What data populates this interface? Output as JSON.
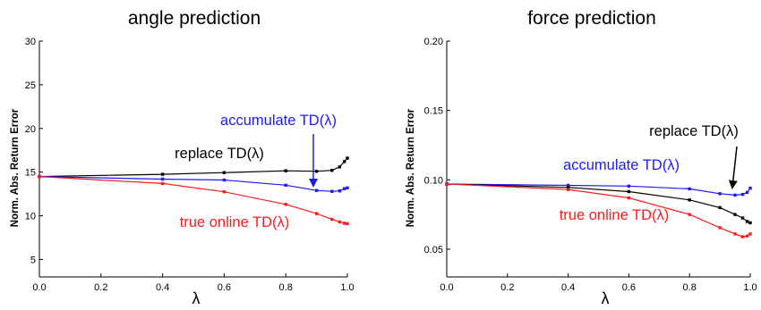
{
  "chart_data": [
    {
      "type": "line",
      "title": "angle prediction",
      "xlabel": "λ",
      "ylabel": "Norm. Abs. Return Error",
      "xlim": [
        0.0,
        1.0
      ],
      "ylim": [
        3,
        30
      ],
      "x_ticks": [
        "0.0",
        "0.2",
        "0.4",
        "0.6",
        "0.8",
        "1.0"
      ],
      "y_ticks": [
        "5",
        "10",
        "15",
        "20",
        "25",
        "30"
      ],
      "grid": false,
      "legend": "none (inline annotations)",
      "series": [
        {
          "name": "replace TD(λ)",
          "color": "#000000",
          "x": [
            0.0,
            0.4,
            0.6,
            0.8,
            0.9,
            0.95,
            0.975,
            0.99,
            1.0
          ],
          "y": [
            14.5,
            14.75,
            14.95,
            15.15,
            15.1,
            15.2,
            15.6,
            16.2,
            16.6
          ]
        },
        {
          "name": "accumulate TD(λ)",
          "color": "#1a1aff",
          "x": [
            0.0,
            0.4,
            0.6,
            0.8,
            0.9,
            0.95,
            0.975,
            0.99,
            1.0
          ],
          "y": [
            14.5,
            14.2,
            14.1,
            13.5,
            12.9,
            12.8,
            12.85,
            13.1,
            13.2
          ]
        },
        {
          "name": "true online TD(λ)",
          "color": "#ff1a1a",
          "x": [
            0.0,
            0.4,
            0.6,
            0.8,
            0.9,
            0.95,
            0.975,
            0.99,
            1.0
          ],
          "y": [
            14.5,
            13.7,
            12.75,
            11.3,
            10.25,
            9.6,
            9.3,
            9.15,
            9.1
          ]
        }
      ],
      "annotations": [
        {
          "text": "accumulate TD(λ)",
          "color": "#1a1aff",
          "arrow_to": [
            0.9,
            13.0
          ]
        },
        {
          "text": "replace TD(λ)",
          "color": "#000000"
        },
        {
          "text": "true online TD(λ)",
          "color": "#ff1a1a"
        }
      ]
    },
    {
      "type": "line",
      "title": "force prediction",
      "xlabel": "λ",
      "ylabel": "Norm. Abs. Return Error",
      "xlim": [
        0.0,
        1.0
      ],
      "ylim": [
        0.03,
        0.2
      ],
      "x_ticks": [
        "0.0",
        "0.2",
        "0.4",
        "0.6",
        "0.8",
        "1.0"
      ],
      "y_ticks": [
        "0.05",
        "0.10",
        "0.15",
        "0.20"
      ],
      "grid": false,
      "legend": "none (inline annotations)",
      "series": [
        {
          "name": "accumulate TD(λ)",
          "color": "#1a1aff",
          "x": [
            0.0,
            0.4,
            0.6,
            0.8,
            0.9,
            0.95,
            0.975,
            0.99,
            1.0
          ],
          "y": [
            0.097,
            0.096,
            0.0955,
            0.0935,
            0.09,
            0.089,
            0.0895,
            0.091,
            0.094
          ]
        },
        {
          "name": "replace TD(λ)",
          "color": "#000000",
          "x": [
            0.0,
            0.4,
            0.6,
            0.8,
            0.9,
            0.95,
            0.975,
            0.99,
            1.0
          ],
          "y": [
            0.097,
            0.0945,
            0.0915,
            0.0855,
            0.08,
            0.075,
            0.0725,
            0.07,
            0.069
          ]
        },
        {
          "name": "true online TD(λ)",
          "color": "#ff1a1a",
          "x": [
            0.0,
            0.4,
            0.6,
            0.8,
            0.9,
            0.95,
            0.975,
            0.99,
            1.0
          ],
          "y": [
            0.097,
            0.093,
            0.087,
            0.075,
            0.0655,
            0.061,
            0.059,
            0.0595,
            0.061
          ]
        }
      ],
      "annotations": [
        {
          "text": "replace TD(λ)",
          "color": "#000000",
          "arrow_to": [
            0.95,
            0.074
          ]
        },
        {
          "text": "accumulate TD(λ)",
          "color": "#1a1aff"
        },
        {
          "text": "true online TD(λ)",
          "color": "#ff1a1a"
        }
      ]
    }
  ]
}
